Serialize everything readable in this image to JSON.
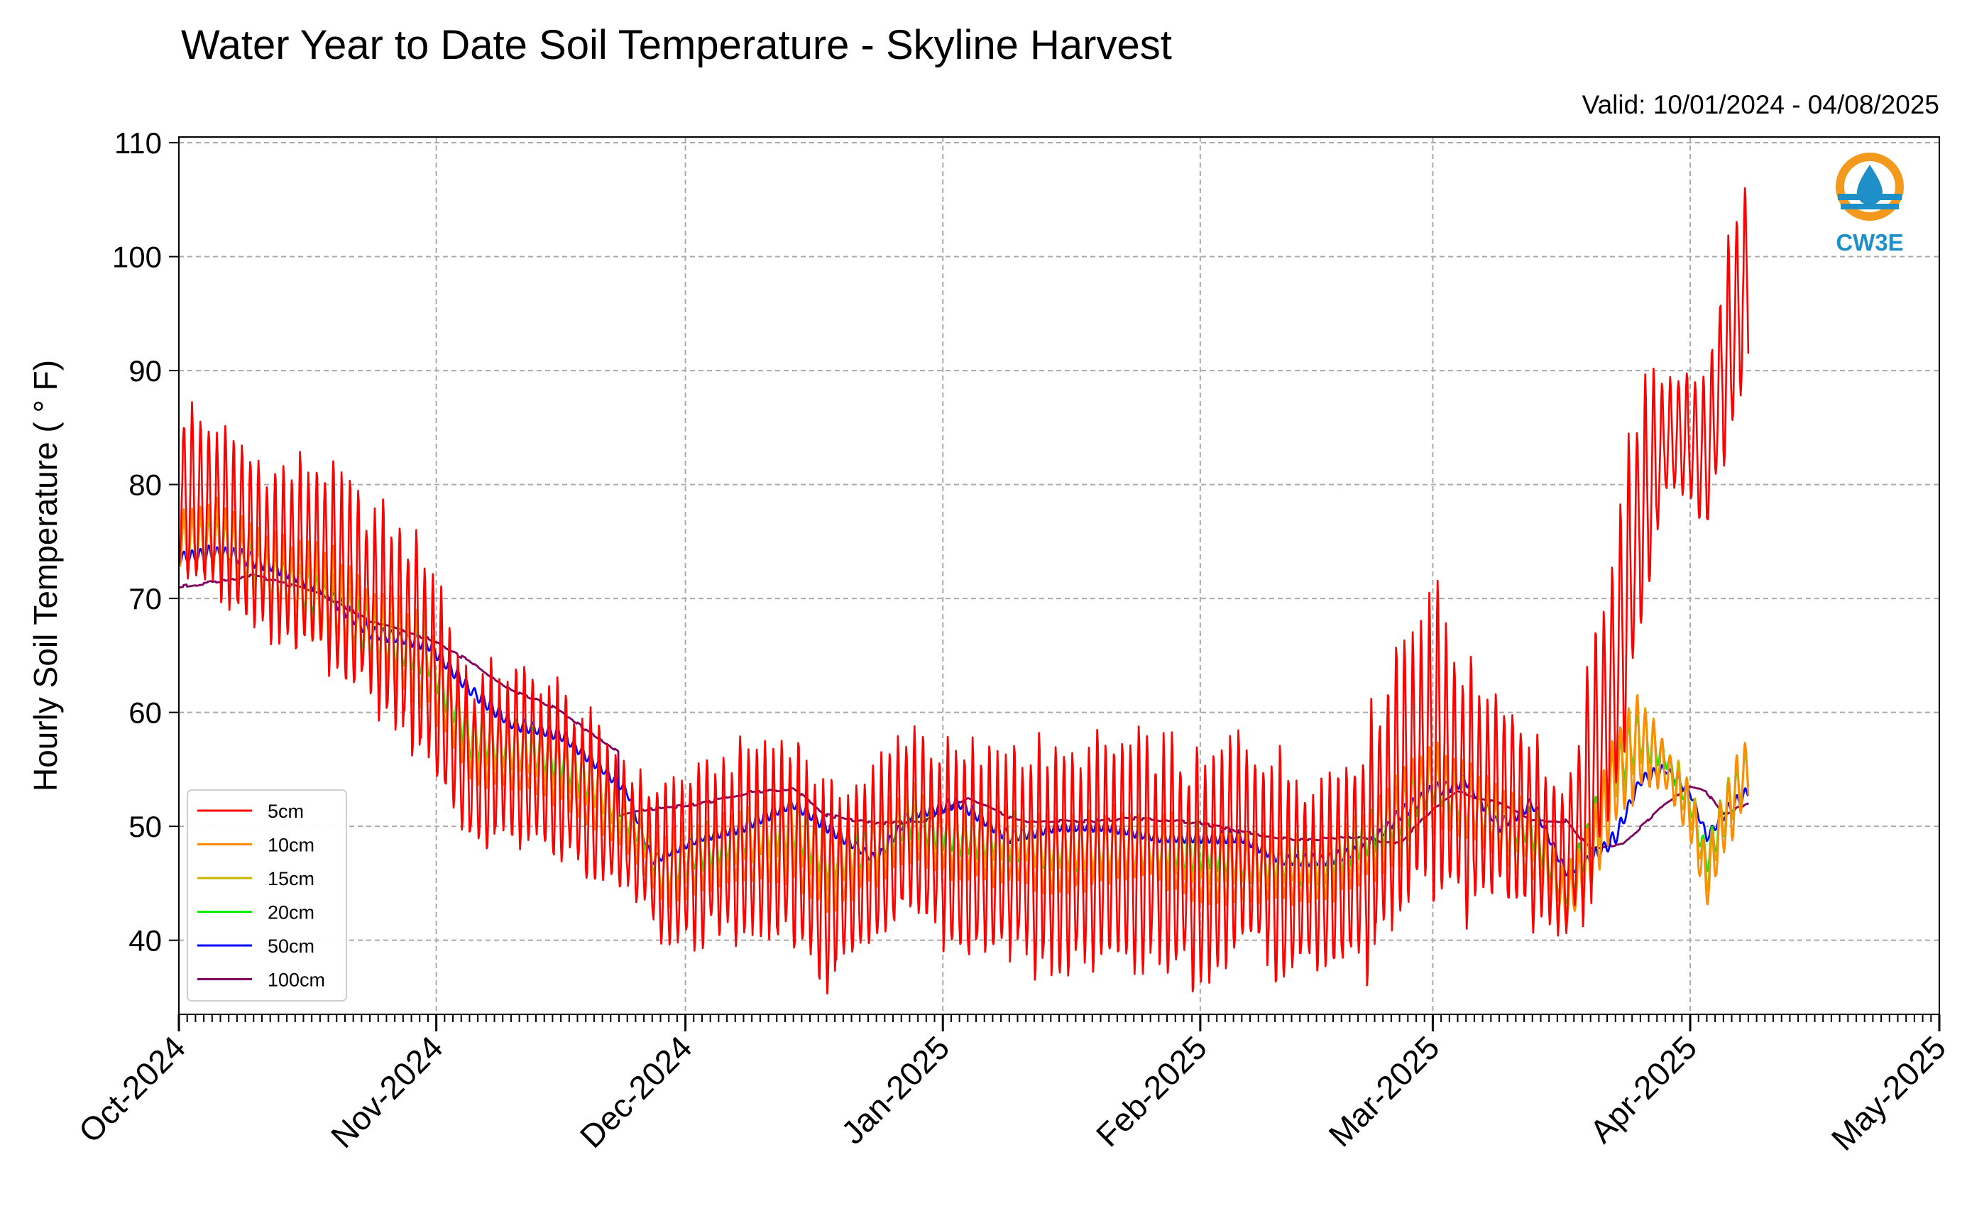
{
  "chart_data": {
    "type": "line",
    "title": "Water Year to Date Soil Temperature - Skyline Harvest",
    "subtitle": "Valid: 10/01/2024 - 04/08/2025",
    "xlabel": "",
    "ylabel": "Hourly Soil Temperature ( ° F)",
    "xlim": [
      "2024-10-01",
      "2025-05-01"
    ],
    "ylim": [
      33.5,
      110.5
    ],
    "yticks": [
      40,
      50,
      60,
      70,
      80,
      90,
      100,
      110
    ],
    "xtick_labels": [
      {
        "date": "2024-10-01",
        "label": "Oct-2024"
      },
      {
        "date": "2024-11-01",
        "label": "Nov-2024"
      },
      {
        "date": "2024-12-01",
        "label": "Dec-2024"
      },
      {
        "date": "2025-01-01",
        "label": "Jan-2025"
      },
      {
        "date": "2025-02-01",
        "label": "Feb-2025"
      },
      {
        "date": "2025-03-01",
        "label": "Mar-2025"
      },
      {
        "date": "2025-04-01",
        "label": "Apr-2025"
      },
      {
        "date": "2025-05-01",
        "label": "May-2025"
      }
    ],
    "grid": true,
    "legend_position": "lower-left",
    "logo_text": "CW3E",
    "series": [
      {
        "name": "5cm",
        "color": "#ff0000",
        "x": [
          "2024-10-01",
          "2024-10-06",
          "2024-10-12",
          "2024-10-18",
          "2024-10-24",
          "2024-10-31",
          "2024-11-05",
          "2024-11-10",
          "2024-11-16",
          "2024-11-21",
          "2024-11-26",
          "2024-11-28",
          "2024-12-03",
          "2024-12-08",
          "2024-12-14",
          "2024-12-18",
          "2024-12-24",
          "2024-12-28",
          "2025-01-03",
          "2025-01-09",
          "2025-01-15",
          "2025-01-21",
          "2025-01-27",
          "2025-02-01",
          "2025-02-06",
          "2025-02-11",
          "2025-02-16",
          "2025-02-21",
          "2025-02-25",
          "2025-03-01",
          "2025-03-05",
          "2025-03-09",
          "2025-03-13",
          "2025-03-17",
          "2025-03-20",
          "2025-03-23",
          "2025-03-26",
          "2025-03-29",
          "2025-04-01",
          "2025-04-03",
          "2025-04-05",
          "2025-04-08"
        ],
        "mid": [
          79,
          77,
          73,
          73,
          69,
          64,
          55,
          56,
          54,
          51,
          48,
          46,
          47,
          48,
          48,
          44,
          47,
          50,
          47,
          47,
          46,
          47,
          47,
          45,
          48,
          45,
          45,
          47,
          53,
          57,
          52,
          52,
          49,
          46,
          53,
          63,
          77,
          84,
          84,
          82,
          90,
          98
        ],
        "amp": [
          7,
          7,
          7,
          8,
          8,
          9,
          7,
          7,
          7,
          6,
          5,
          7,
          7,
          8,
          9,
          8,
          7,
          8,
          8,
          9,
          9,
          9,
          9,
          9,
          9,
          9,
          8,
          10,
          12,
          13,
          10,
          9,
          8,
          5,
          10,
          12,
          10,
          5,
          6,
          6,
          8,
          8
        ]
      },
      {
        "name": "10cm",
        "color": "#ff8c00",
        "x": [
          "2024-10-01",
          "2024-10-06",
          "2024-10-12",
          "2024-10-18",
          "2024-10-24",
          "2024-10-31",
          "2024-11-05",
          "2024-11-10",
          "2024-11-16",
          "2024-11-21",
          "2024-11-26",
          "2024-11-28",
          "2024-12-03",
          "2024-12-08",
          "2024-12-14",
          "2024-12-18",
          "2024-12-24",
          "2024-12-28",
          "2025-01-03",
          "2025-01-09",
          "2025-01-15",
          "2025-01-21",
          "2025-01-27",
          "2025-02-01",
          "2025-02-06",
          "2025-02-11",
          "2025-02-16",
          "2025-02-21",
          "2025-02-25",
          "2025-03-01",
          "2025-03-05",
          "2025-03-09",
          "2025-03-13",
          "2025-03-17",
          "2025-03-20",
          "2025-03-23",
          "2025-03-26",
          "2025-03-29",
          "2025-04-01",
          "2025-04-03",
          "2025-04-05",
          "2025-04-08"
        ],
        "mid": [
          75,
          75,
          72,
          70,
          67,
          64,
          57,
          56,
          55,
          52,
          48,
          46,
          47,
          48,
          49,
          46,
          48,
          50,
          48,
          48,
          47,
          48,
          48,
          46,
          46,
          46,
          46,
          48,
          50,
          53,
          52,
          50,
          48,
          43,
          47,
          54,
          57,
          55,
          51,
          45,
          50,
          55
        ],
        "amp": [
          3,
          3,
          3,
          4,
          4,
          4,
          3,
          3,
          3,
          3,
          2,
          3,
          3,
          3,
          4,
          4,
          3,
          3,
          3,
          3,
          3,
          3,
          3,
          3,
          3,
          3,
          3,
          3,
          4,
          4,
          3,
          3,
          3,
          2,
          3,
          4,
          4,
          2,
          2,
          2,
          3,
          3
        ]
      },
      {
        "name": "15cm",
        "color": "#c8b400",
        "x": [
          "2024-10-01",
          "2024-10-06",
          "2024-10-12",
          "2024-10-18",
          "2024-10-24",
          "2024-10-31",
          "2024-11-05",
          "2024-11-10",
          "2024-11-16",
          "2024-11-21",
          "2024-11-26",
          "2024-11-28",
          "2024-12-03",
          "2024-12-08",
          "2024-12-14",
          "2024-12-18",
          "2024-12-24",
          "2024-12-28",
          "2025-01-03",
          "2025-01-09",
          "2025-01-15",
          "2025-01-21",
          "2025-01-27",
          "2025-02-01",
          "2025-02-06",
          "2025-02-11",
          "2025-02-16",
          "2025-02-21",
          "2025-02-25",
          "2025-03-01",
          "2025-03-05",
          "2025-03-09",
          "2025-03-13",
          "2025-03-17",
          "2025-03-20",
          "2025-03-23",
          "2025-03-26",
          "2025-03-29",
          "2025-04-01",
          "2025-04-03",
          "2025-04-05",
          "2025-04-08"
        ],
        "mid": [
          75,
          75,
          72,
          70,
          67,
          64,
          57,
          57,
          55,
          53,
          49,
          46,
          47,
          49,
          50,
          47,
          48,
          50,
          48,
          49,
          48,
          48,
          48,
          47,
          47,
          47,
          47,
          48,
          51,
          53,
          52,
          50,
          49,
          44,
          48,
          55,
          58,
          55,
          52,
          46,
          51,
          55
        ],
        "amp": [
          2,
          2,
          2,
          3,
          3,
          3,
          2,
          2,
          2,
          2,
          2,
          2,
          2,
          2,
          3,
          3,
          2,
          2,
          2,
          2,
          2,
          2,
          2,
          2,
          2,
          2,
          2,
          2,
          3,
          3,
          2,
          2,
          2,
          2,
          2,
          3,
          3,
          2,
          2,
          2,
          2,
          2
        ]
      },
      {
        "name": "20cm",
        "color": "#00ee00",
        "x": [
          "2024-10-01",
          "2024-10-06",
          "2024-10-12",
          "2024-10-18",
          "2024-10-24",
          "2024-10-31",
          "2024-11-05",
          "2024-11-10",
          "2024-11-16",
          "2024-11-21",
          "2024-11-26",
          "2024-11-28",
          "2024-12-03",
          "2024-12-08",
          "2024-12-14",
          "2024-12-18",
          "2024-12-24",
          "2024-12-28",
          "2025-01-03",
          "2025-01-09",
          "2025-01-15",
          "2025-01-21",
          "2025-01-27",
          "2025-02-01",
          "2025-02-06",
          "2025-02-11",
          "2025-02-16",
          "2025-02-21",
          "2025-02-25",
          "2025-03-01",
          "2025-03-05",
          "2025-03-09",
          "2025-03-13",
          "2025-03-17",
          "2025-03-20",
          "2025-03-23",
          "2025-03-26",
          "2025-03-29",
          "2025-04-01",
          "2025-04-03",
          "2025-04-05",
          "2025-04-08"
        ],
        "mid": [
          75,
          75,
          72,
          70,
          67,
          65,
          58,
          57,
          56,
          53,
          49,
          46,
          48,
          49,
          50,
          47,
          48,
          51,
          49,
          49,
          48,
          48,
          48,
          48,
          47,
          47,
          47,
          49,
          51,
          54,
          52,
          50,
          50,
          44,
          49,
          55,
          58,
          56,
          52,
          47,
          51,
          55
        ],
        "amp": [
          2,
          2,
          2,
          2,
          2,
          2,
          2,
          2,
          2,
          2,
          1,
          2,
          2,
          2,
          2,
          2,
          2,
          2,
          2,
          2,
          2,
          2,
          2,
          2,
          2,
          2,
          2,
          2,
          2,
          2,
          2,
          2,
          2,
          1,
          2,
          2,
          2,
          1,
          1,
          1,
          2,
          2
        ]
      },
      {
        "name": "50cm",
        "color": "#0000ff",
        "x": [
          "2024-10-01",
          "2024-10-06",
          "2024-10-12",
          "2024-10-18",
          "2024-10-24",
          "2024-10-31",
          "2024-11-05",
          "2024-11-10",
          "2024-11-16",
          "2024-11-21",
          "2024-11-24",
          "2024-11-27",
          "2024-12-03",
          "2024-12-08",
          "2024-12-14",
          "2024-12-18",
          "2024-12-24",
          "2024-12-28",
          "2025-01-03",
          "2025-01-09",
          "2025-01-15",
          "2025-01-21",
          "2025-01-27",
          "2025-02-01",
          "2025-02-06",
          "2025-02-11",
          "2025-02-16",
          "2025-02-21",
          "2025-02-25",
          "2025-03-01",
          "2025-03-05",
          "2025-03-09",
          "2025-03-13",
          "2025-03-17",
          "2025-03-20",
          "2025-03-23",
          "2025-03-26",
          "2025-03-29",
          "2025-04-01",
          "2025-04-03",
          "2025-04-05",
          "2025-04-08"
        ],
        "mid": [
          73.5,
          74,
          73,
          71,
          67,
          66,
          62,
          59,
          58,
          55,
          53,
          47,
          49,
          50,
          52,
          50,
          47,
          51,
          52,
          49,
          50,
          50,
          49,
          49,
          49,
          47,
          47,
          48,
          51,
          53,
          54,
          50,
          52,
          46,
          47,
          49,
          54,
          55,
          53,
          49,
          51,
          53
        ],
        "amp": [
          0.6,
          0.6,
          0.6,
          0.6,
          0.5,
          0.5,
          0.5,
          0.5,
          0.5,
          0.4,
          0.4,
          0.4,
          0.4,
          0.5,
          0.5,
          0.5,
          0.4,
          0.5,
          0.5,
          0.5,
          0.5,
          0.5,
          0.5,
          0.5,
          0.5,
          0.5,
          0.5,
          0.5,
          0.5,
          0.6,
          0.5,
          0.5,
          0.5,
          0.4,
          0.5,
          0.6,
          0.5,
          0.4,
          0.4,
          0.4,
          0.5,
          0.5
        ]
      },
      {
        "name": "100cm",
        "color": "#800060",
        "x": [
          "2024-10-01",
          "2024-10-10",
          "2024-10-18",
          "2024-10-24",
          "2024-10-31",
          "2024-11-05",
          "2024-11-10",
          "2024-11-15",
          "2024-11-20",
          "2024-11-23",
          "2024-11-23",
          "2024-11-27",
          "2024-12-03",
          "2024-12-09",
          "2024-12-14",
          "2024-12-18",
          "2024-12-24",
          "2024-12-30",
          "2025-01-04",
          "2025-01-10",
          "2025-01-17",
          "2025-01-24",
          "2025-02-01",
          "2025-02-06",
          "2025-02-13",
          "2025-02-20",
          "2025-02-25",
          "2025-03-01",
          "2025-03-04",
          "2025-03-09",
          "2025-03-13",
          "2025-03-17",
          "2025-03-20",
          "2025-03-24",
          "2025-03-29",
          "2025-04-01",
          "2025-04-03",
          "2025-04-05",
          "2025-04-08"
        ],
        "mid": [
          71,
          72,
          70.5,
          68,
          66.5,
          64.5,
          62,
          60.5,
          58,
          56.5,
          51,
          51.5,
          52,
          53,
          53.3,
          51,
          50.2,
          50.5,
          52.5,
          50.5,
          50.4,
          50.7,
          50.3,
          49.5,
          48.8,
          49,
          48.5,
          51.5,
          53,
          52,
          50.5,
          50.5,
          48,
          48.5,
          52,
          53.5,
          53,
          51,
          52
        ],
        "amp": [
          0,
          0,
          0,
          0,
          0,
          0,
          0,
          0,
          0,
          0,
          0,
          0,
          0,
          0,
          0,
          0,
          0,
          0,
          0,
          0,
          0,
          0,
          0,
          0,
          0,
          0,
          0,
          0,
          0,
          0,
          0,
          0,
          0,
          0,
          0,
          0,
          0,
          0,
          0
        ]
      }
    ]
  }
}
